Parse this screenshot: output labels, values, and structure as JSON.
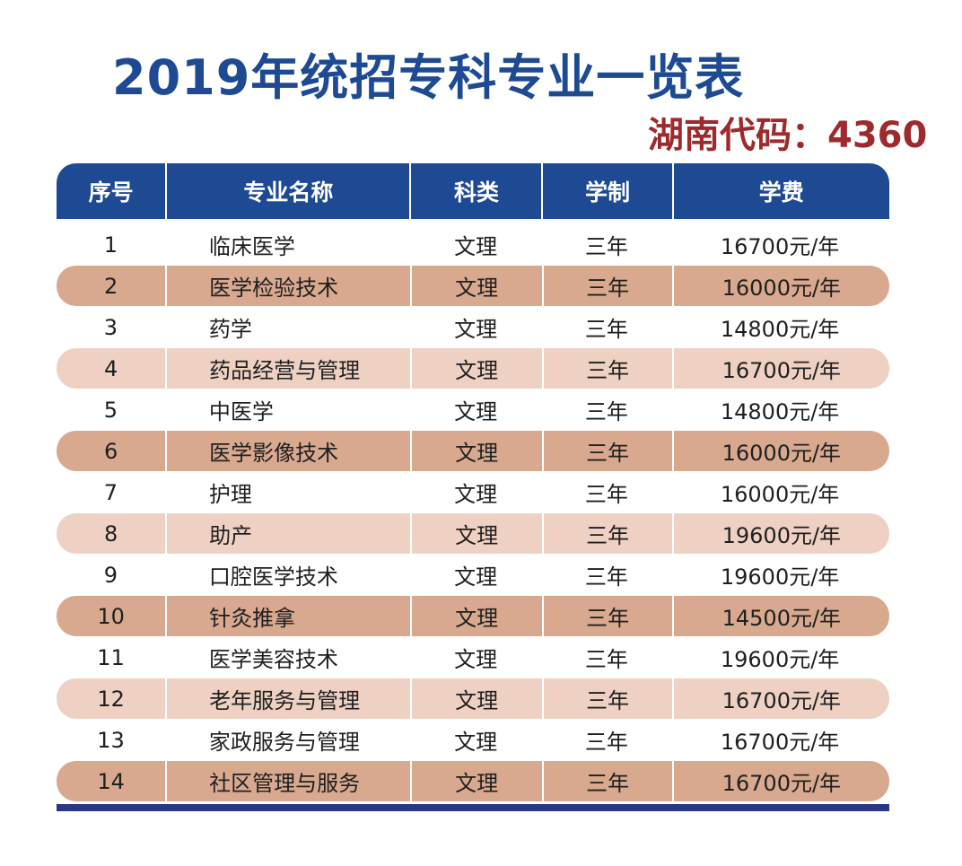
{
  "title": "2019年统招专科专业一览表",
  "code_label": "湖南代码：4360",
  "table": {
    "headers": [
      "序号",
      "专业名称",
      "科类",
      "学制",
      "学费"
    ],
    "rows": [
      {
        "no": "1",
        "name": "临床医学",
        "type": "文理",
        "years": "三年",
        "fee": "16700元/年"
      },
      {
        "no": "2",
        "name": "医学检验技术",
        "type": "文理",
        "years": "三年",
        "fee": "16000元/年"
      },
      {
        "no": "3",
        "name": "药学",
        "type": "文理",
        "years": "三年",
        "fee": "14800元/年"
      },
      {
        "no": "4",
        "name": "药品经营与管理",
        "type": "文理",
        "years": "三年",
        "fee": "16700元/年"
      },
      {
        "no": "5",
        "name": "中医学",
        "type": "文理",
        "years": "三年",
        "fee": "14800元/年"
      },
      {
        "no": "6",
        "name": "医学影像技术",
        "type": "文理",
        "years": "三年",
        "fee": "16000元/年"
      },
      {
        "no": "7",
        "name": "护理",
        "type": "文理",
        "years": "三年",
        "fee": "16000元/年"
      },
      {
        "no": "8",
        "name": "助产",
        "type": "文理",
        "years": "三年",
        "fee": "19600元/年"
      },
      {
        "no": "9",
        "name": "口腔医学技术",
        "type": "文理",
        "years": "三年",
        "fee": "19600元/年"
      },
      {
        "no": "10",
        "name": "针灸推拿",
        "type": "文理",
        "years": "三年",
        "fee": "14500元/年"
      },
      {
        "no": "11",
        "name": "医学美容技术",
        "type": "文理",
        "years": "三年",
        "fee": "19600元/年"
      },
      {
        "no": "12",
        "name": "老年服务与管理",
        "type": "文理",
        "years": "三年",
        "fee": "16700元/年"
      },
      {
        "no": "13",
        "name": "家政服务与管理",
        "type": "文理",
        "years": "三年",
        "fee": "16700元/年"
      },
      {
        "no": "14",
        "name": "社区管理与服务",
        "type": "文理",
        "years": "三年",
        "fee": "16700元/年"
      }
    ]
  },
  "colors": {
    "header_bg": "#1d4a93",
    "title": "#1d4a93",
    "code": "#9d2a2c",
    "row_dark": "#d8a98f",
    "row_light": "#efd1c3"
  }
}
